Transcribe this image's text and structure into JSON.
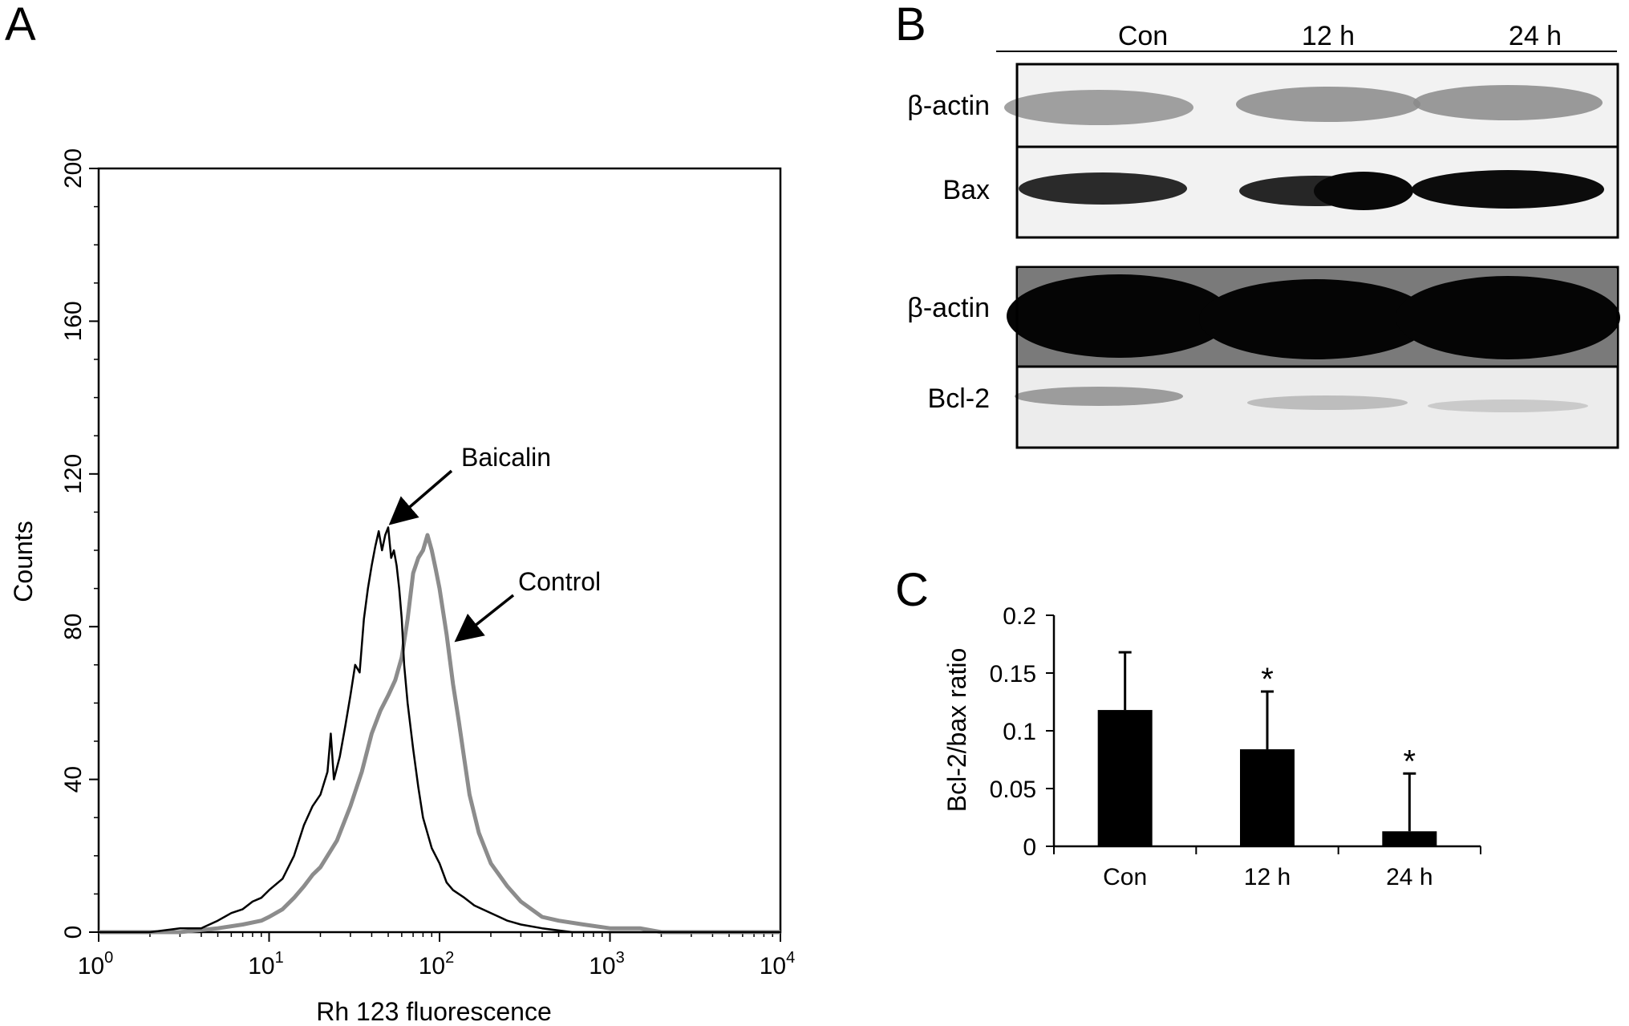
{
  "panels": {
    "a": {
      "letter": "A"
    },
    "b": {
      "letter": "B"
    },
    "c": {
      "letter": "C"
    }
  },
  "colors": {
    "baicalin_line": "#000000",
    "control_line": "#8c8c8c",
    "bar_fill": "#000000",
    "blot_background": "#f0f0f0",
    "band_dark": "#0a0a0a"
  },
  "chart_data": [
    {
      "id": "A",
      "type": "line",
      "xscale": "log",
      "xlabel": "Rh 123 fluorescence",
      "ylabel": "Counts",
      "xlim": [
        1,
        10000
      ],
      "ylim": [
        0,
        200
      ],
      "x_ticks": [
        1,
        10,
        100,
        1000,
        10000
      ],
      "x_tick_labels": [
        {
          "base": "10",
          "exp": "0"
        },
        {
          "base": "10",
          "exp": "1"
        },
        {
          "base": "10",
          "exp": "2"
        },
        {
          "base": "10",
          "exp": "3"
        },
        {
          "base": "10",
          "exp": "4"
        }
      ],
      "y_ticks": [
        0,
        40,
        80,
        120,
        160,
        200
      ],
      "y_tick_labels": [
        "0",
        "40",
        "80",
        "120",
        "160",
        "200"
      ],
      "annotations": [
        {
          "text": "Baicalin",
          "x": 52,
          "y": 108
        },
        {
          "text": "Control",
          "x": 105,
          "y": 78
        }
      ],
      "series": [
        {
          "name": "Baicalin",
          "x": [
            1,
            2,
            3,
            4,
            5,
            6,
            7,
            8,
            9,
            10,
            12,
            14,
            16,
            18,
            20,
            22,
            23,
            24,
            26,
            28,
            30,
            32,
            34,
            36,
            38,
            40,
            42,
            44,
            46,
            48,
            50,
            52,
            54,
            56,
            58,
            60,
            62,
            65,
            70,
            75,
            80,
            90,
            100,
            110,
            120,
            140,
            160,
            200,
            250,
            300,
            400,
            600,
            1000,
            2000,
            10000
          ],
          "y": [
            0,
            0,
            1,
            1,
            3,
            5,
            6,
            8,
            9,
            11,
            14,
            20,
            28,
            33,
            36,
            42,
            52,
            40,
            46,
            54,
            62,
            70,
            68,
            82,
            90,
            96,
            101,
            105,
            100,
            104,
            106,
            98,
            100,
            96,
            90,
            82,
            70,
            60,
            48,
            38,
            30,
            22,
            18,
            13,
            11,
            9,
            7,
            5,
            3,
            2,
            1,
            0,
            0,
            0,
            0
          ]
        },
        {
          "name": "Control",
          "x": [
            1,
            3,
            5,
            7,
            9,
            10,
            12,
            14,
            16,
            18,
            20,
            25,
            30,
            35,
            40,
            45,
            50,
            55,
            60,
            65,
            70,
            75,
            80,
            85,
            90,
            95,
            100,
            110,
            120,
            130,
            140,
            150,
            170,
            200,
            250,
            300,
            400,
            500,
            700,
            1000,
            1500,
            2000,
            3000,
            10000
          ],
          "y": [
            0,
            0,
            1,
            2,
            3,
            4,
            6,
            9,
            12,
            15,
            17,
            24,
            33,
            42,
            52,
            58,
            62,
            66,
            72,
            82,
            94,
            98,
            100,
            104,
            100,
            95,
            90,
            78,
            65,
            55,
            45,
            36,
            26,
            18,
            12,
            8,
            4,
            3,
            2,
            1,
            1,
            0,
            0,
            0
          ]
        }
      ]
    },
    {
      "id": "C",
      "type": "bar",
      "ylabel": "Bcl-2/bax ratio",
      "categories": [
        "Con",
        "12 h",
        "24 h"
      ],
      "values": [
        0.118,
        0.084,
        0.013
      ],
      "error": [
        0.05,
        0.05,
        0.05
      ],
      "significance": [
        "",
        "*",
        "*"
      ],
      "ylim": [
        0,
        0.2
      ],
      "y_ticks": [
        0,
        0.05,
        0.1,
        0.15,
        0.2
      ],
      "y_tick_labels": [
        "0",
        "0.05",
        "0.1",
        "0.15",
        "0.2"
      ]
    }
  ],
  "blot": {
    "lanes": [
      "Con",
      "12 h",
      "24 h"
    ],
    "rows": [
      {
        "label": "β-actin"
      },
      {
        "label": "Bax"
      },
      {
        "label": "β-actin"
      },
      {
        "label": "Bcl-2"
      }
    ]
  }
}
